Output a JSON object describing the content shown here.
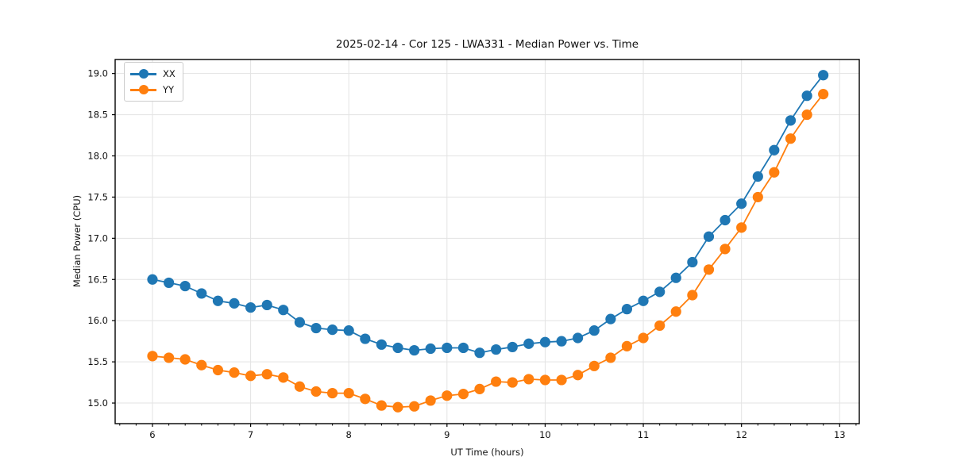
{
  "chart_data": {
    "type": "line",
    "title": "2025-02-14 - Cor 125 - LWA331 - Median Power vs. Time",
    "xlabel": "UT Time (hours)",
    "ylabel": "Median Power (CPU)",
    "xlim": [
      5.62,
      13.2
    ],
    "ylim": [
      14.75,
      19.17
    ],
    "xticks": [
      6,
      7,
      8,
      9,
      10,
      11,
      12,
      13
    ],
    "yticks": [
      15.0,
      15.5,
      16.0,
      16.5,
      17.0,
      17.5,
      18.0,
      18.5,
      19.0
    ],
    "x_minor_step": 0.16667,
    "grid": true,
    "legend_position": "upper-left",
    "x": [
      6.0,
      6.167,
      6.333,
      6.5,
      6.667,
      6.833,
      7.0,
      7.167,
      7.333,
      7.5,
      7.667,
      7.833,
      8.0,
      8.167,
      8.333,
      8.5,
      8.667,
      8.833,
      9.0,
      9.167,
      9.333,
      9.5,
      9.667,
      9.833,
      10.0,
      10.167,
      10.333,
      10.5,
      10.667,
      10.833,
      11.0,
      11.167,
      11.333,
      11.5,
      11.667,
      11.833,
      12.0,
      12.167,
      12.333,
      12.5,
      12.667,
      12.833
    ],
    "series": [
      {
        "name": "XX",
        "color": "#1f77b4",
        "values": [
          16.5,
          16.46,
          16.42,
          16.33,
          16.24,
          16.21,
          16.16,
          16.19,
          16.13,
          15.98,
          15.91,
          15.89,
          15.88,
          15.78,
          15.71,
          15.67,
          15.64,
          15.66,
          15.67,
          15.67,
          15.61,
          15.65,
          15.68,
          15.72,
          15.74,
          15.75,
          15.79,
          15.88,
          16.02,
          16.14,
          16.24,
          16.35,
          16.52,
          16.71,
          17.02,
          17.22,
          17.42,
          17.75,
          18.07,
          18.43,
          18.73,
          18.98
        ]
      },
      {
        "name": "YY",
        "color": "#ff7f0e",
        "values": [
          15.57,
          15.55,
          15.53,
          15.46,
          15.4,
          15.37,
          15.33,
          15.35,
          15.31,
          15.2,
          15.14,
          15.12,
          15.12,
          15.05,
          14.97,
          14.95,
          14.96,
          15.03,
          15.09,
          15.11,
          15.17,
          15.26,
          15.25,
          15.29,
          15.28,
          15.28,
          15.34,
          15.45,
          15.55,
          15.69,
          15.79,
          15.94,
          16.11,
          16.31,
          16.62,
          16.87,
          17.13,
          17.5,
          17.8,
          18.21,
          18.5,
          18.75
        ]
      }
    ]
  }
}
